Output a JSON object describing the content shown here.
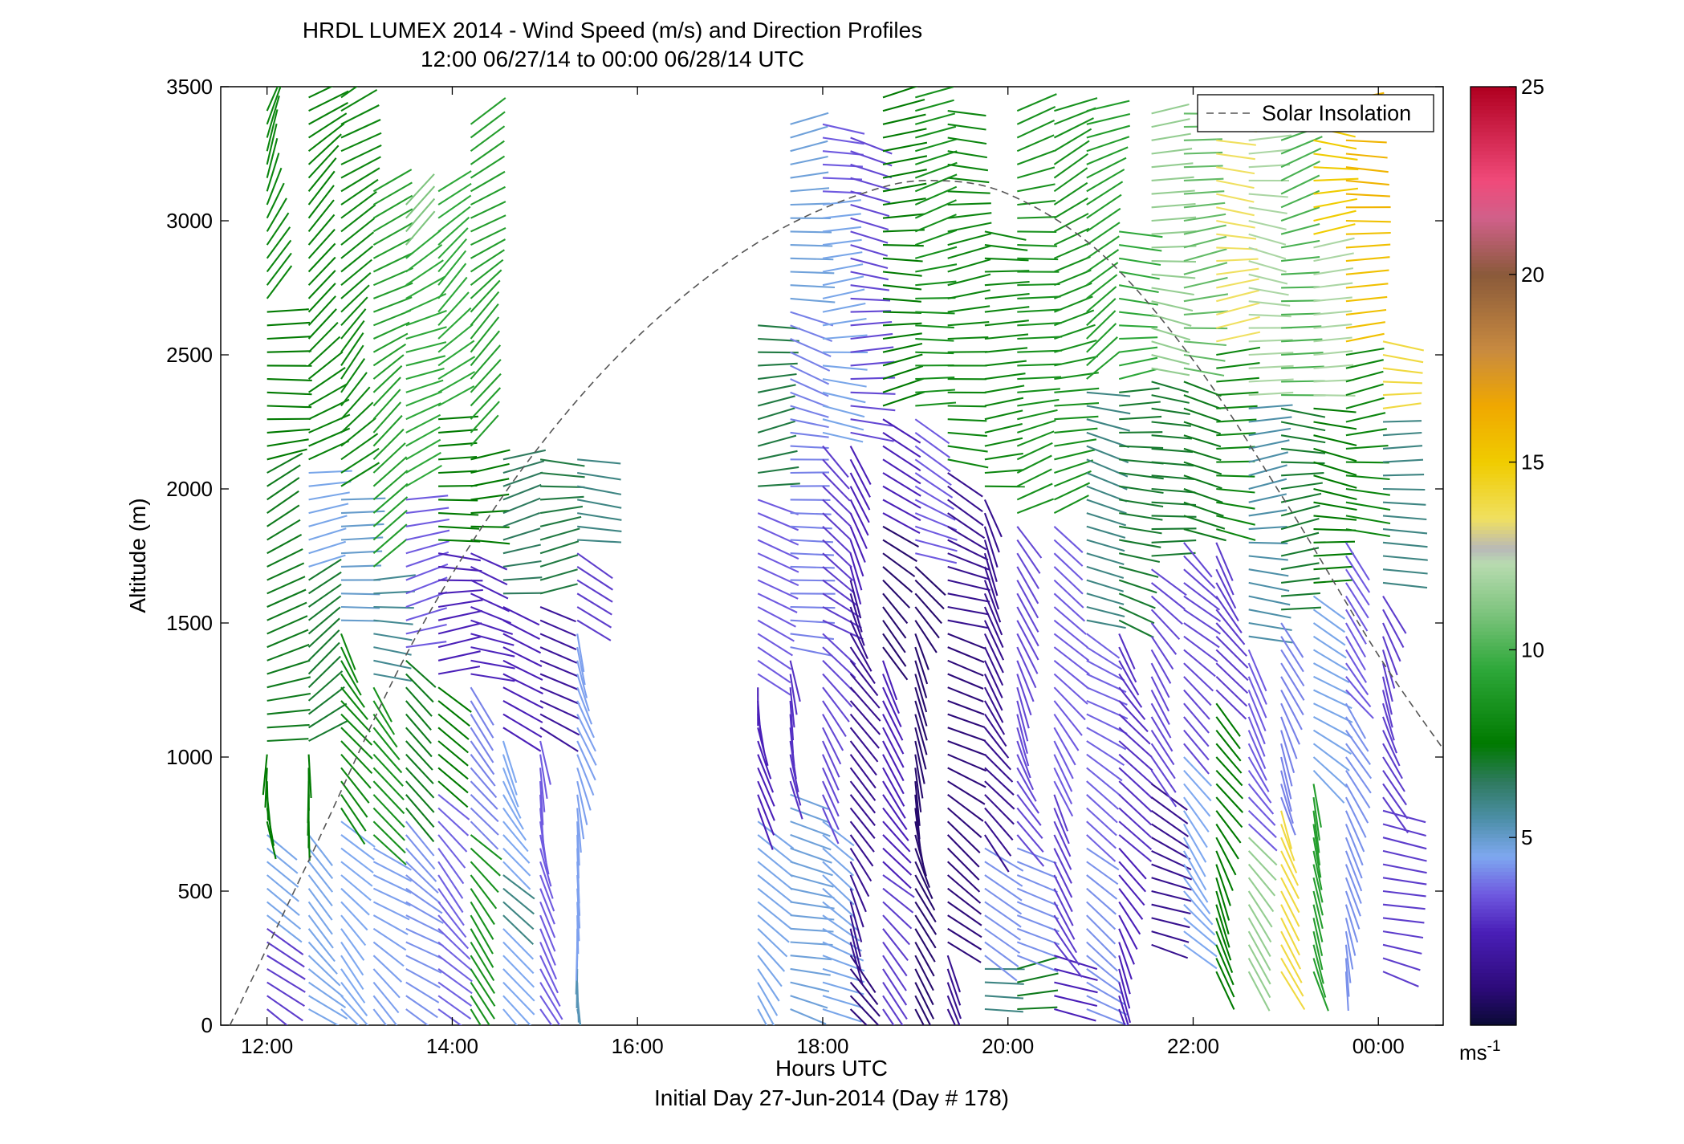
{
  "chart_data": {
    "type": "wind-barb-profile",
    "title": "HRDL LUMEX 2014 - Wind Speed (m/s) and Direction Profiles",
    "subtitle": "12:00 06/27/14 to 00:00 06/28/14  UTC",
    "xlabel": "Hours UTC",
    "xlabel2": "Initial Day 27-Jun-2014 (Day # 178)",
    "ylabel": "Altitude (m)",
    "xlim_hours": [
      11.5,
      24.7
    ],
    "ylim": [
      0,
      3500
    ],
    "x_ticks": [
      {
        "hour": 12,
        "label": "12:00"
      },
      {
        "hour": 14,
        "label": "14:00"
      },
      {
        "hour": 16,
        "label": "16:00"
      },
      {
        "hour": 18,
        "label": "18:00"
      },
      {
        "hour": 20,
        "label": "20:00"
      },
      {
        "hour": 22,
        "label": "22:00"
      },
      {
        "hour": 24,
        "label": "00:00"
      }
    ],
    "y_ticks": [
      0,
      500,
      1000,
      1500,
      2000,
      2500,
      3000,
      3500
    ],
    "colorbar": {
      "range": [
        0,
        25
      ],
      "ticks": [
        5,
        10,
        15,
        20,
        25
      ],
      "unit": "ms",
      "unit_exp": "-1",
      "colormap": [
        [
          0,
          "#0a0a35"
        ],
        [
          1,
          "#2d0a7a"
        ],
        [
          2.5,
          "#4a1fb8"
        ],
        [
          3.5,
          "#6f5ae0"
        ],
        [
          4.5,
          "#7ea8f0"
        ],
        [
          5.5,
          "#4d8fa8"
        ],
        [
          6.5,
          "#2e7a5e"
        ],
        [
          7.5,
          "#007a00"
        ],
        [
          9.5,
          "#2ea83a"
        ],
        [
          11,
          "#7ec47e"
        ],
        [
          12.3,
          "#b8dbb0"
        ],
        [
          12.7,
          "#b8b8b8"
        ],
        [
          13.5,
          "#f0e060"
        ],
        [
          15,
          "#f0cc00"
        ],
        [
          16.5,
          "#f0a800"
        ],
        [
          18,
          "#c88a40"
        ],
        [
          20,
          "#8a5a3a"
        ],
        [
          21.5,
          "#d0608a"
        ],
        [
          22.5,
          "#f04a7a"
        ],
        [
          25,
          "#b00020"
        ]
      ]
    },
    "legend": {
      "label": "Solar Insolation",
      "placement": "top-right",
      "style": "dashed gray"
    },
    "solar_insolation_curve": [
      [
        11.6,
        0
      ],
      [
        12.5,
        650
      ],
      [
        13.5,
        1380
      ],
      [
        14.5,
        1950
      ],
      [
        15.5,
        2390
      ],
      [
        16.5,
        2720
      ],
      [
        17.5,
        2960
      ],
      [
        18.5,
        3110
      ],
      [
        19.2,
        3150
      ],
      [
        20.0,
        3100
      ],
      [
        21.0,
        2880
      ],
      [
        22.0,
        2480
      ],
      [
        23.0,
        1950
      ],
      [
        24.0,
        1380
      ],
      [
        24.7,
        1030
      ]
    ],
    "profiles": [
      {
        "hour": 12.0,
        "zmin": 60,
        "zmax": 3420,
        "blocks": [
          [
            0,
            400,
            3.0,
            -45
          ],
          [
            400,
            750,
            4.6,
            -45
          ],
          [
            750,
            1050,
            7.5,
            -80
          ],
          [
            1050,
            2100,
            7.2,
            20
          ],
          [
            2100,
            2700,
            7.5,
            10
          ],
          [
            2700,
            3420,
            8.0,
            60
          ]
        ]
      },
      {
        "hour": 12.45,
        "zmin": 60,
        "zmax": 3480,
        "blocks": [
          [
            0,
            750,
            4.6,
            -45
          ],
          [
            750,
            1050,
            7.5,
            -80
          ],
          [
            1050,
            1700,
            7.0,
            30
          ],
          [
            1700,
            2100,
            4.6,
            15
          ],
          [
            2100,
            3480,
            7.8,
            40
          ]
        ]
      },
      {
        "hour": 12.8,
        "zmin": 60,
        "zmax": 3480,
        "blocks": [
          [
            0,
            800,
            4.5,
            -40
          ],
          [
            800,
            1500,
            8.0,
            -60
          ],
          [
            1500,
            2000,
            5.0,
            10
          ],
          [
            2000,
            3480,
            8.0,
            40
          ]
        ]
      },
      {
        "hour": 13.15,
        "zmin": 60,
        "zmax": 3150,
        "blocks": [
          [
            0,
            700,
            4.4,
            -40
          ],
          [
            700,
            1300,
            8.5,
            -50
          ],
          [
            1300,
            1700,
            5.8,
            5
          ],
          [
            1700,
            3150,
            9.0,
            35
          ]
        ]
      },
      {
        "hour": 13.5,
        "zmin": 60,
        "zmax": 3100,
        "blocks": [
          [
            0,
            800,
            4.2,
            -40
          ],
          [
            800,
            1400,
            7.2,
            -40
          ],
          [
            1400,
            2000,
            3.5,
            5
          ],
          [
            2000,
            2900,
            9.5,
            30
          ],
          [
            2900,
            3100,
            11.0,
            40
          ]
        ]
      },
      {
        "hour": 13.85,
        "zmin": 60,
        "zmax": 3150,
        "blocks": [
          [
            0,
            900,
            3.6,
            -40
          ],
          [
            900,
            1300,
            7.5,
            -45
          ],
          [
            1300,
            1800,
            2.5,
            0
          ],
          [
            1800,
            2300,
            7.5,
            10
          ],
          [
            2300,
            3150,
            9.5,
            35
          ]
        ]
      },
      {
        "hour": 14.2,
        "zmin": 60,
        "zmax": 3400,
        "blocks": [
          [
            0,
            750,
            8.5,
            -50
          ],
          [
            750,
            1300,
            4.0,
            -60
          ],
          [
            1300,
            1800,
            2.6,
            -10
          ],
          [
            1800,
            2150,
            7.5,
            5
          ],
          [
            2150,
            3400,
            9.0,
            40
          ]
        ]
      },
      {
        "hour": 14.55,
        "zmin": 60,
        "zmax": 2150,
        "blocks": [
          [
            0,
            400,
            4.5,
            -50
          ],
          [
            400,
            600,
            6.0,
            -50
          ],
          [
            600,
            1100,
            4.5,
            -60
          ],
          [
            1100,
            1600,
            2.5,
            -20
          ],
          [
            1600,
            2150,
            6.5,
            5
          ]
        ]
      },
      {
        "hour": 14.95,
        "zmin": 60,
        "zmax": 2150,
        "blocks": [
          [
            0,
            1100,
            3.5,
            -70
          ],
          [
            1100,
            1600,
            1.8,
            -30
          ],
          [
            1600,
            2150,
            6.8,
            5
          ]
        ]
      },
      {
        "hour": 15.35,
        "zmin": 60,
        "zmax": 2150,
        "blocks": [
          [
            0,
            300,
            5.3,
            -80
          ],
          [
            300,
            1500,
            4.4,
            -80
          ],
          [
            1500,
            1800,
            3.0,
            -30
          ],
          [
            1800,
            2150,
            6.0,
            5
          ]
        ]
      },
      {
        "hour": 17.3,
        "zmin": 60,
        "zmax": 2650,
        "blocks": [
          [
            0,
            800,
            4.6,
            -45
          ],
          [
            800,
            1300,
            2.5,
            -80
          ],
          [
            1300,
            2000,
            3.5,
            -20
          ],
          [
            2000,
            2650,
            6.8,
            0
          ]
        ]
      },
      {
        "hour": 17.65,
        "zmin": 60,
        "zmax": 3400,
        "blocks": [
          [
            0,
            900,
            4.8,
            -20
          ],
          [
            900,
            1400,
            2.8,
            -70
          ],
          [
            1400,
            2700,
            4.0,
            -10
          ],
          [
            2700,
            3400,
            4.8,
            0
          ]
        ]
      },
      {
        "hour": 18.0,
        "zmin": 60,
        "zmax": 3400,
        "blocks": [
          [
            0,
            800,
            4.6,
            -30
          ],
          [
            800,
            1500,
            3.2,
            -60
          ],
          [
            1500,
            2200,
            3.0,
            -40
          ],
          [
            2200,
            3100,
            4.6,
            0
          ],
          [
            3100,
            3400,
            3.5,
            -10
          ]
        ]
      },
      {
        "hour": 18.3,
        "zmin": 60,
        "zmax": 3350,
        "blocks": [
          [
            0,
            300,
            1.0,
            -45
          ],
          [
            300,
            1700,
            1.5,
            -60
          ],
          [
            1700,
            2200,
            2.5,
            -60
          ],
          [
            2200,
            3350,
            3.2,
            -10
          ]
        ]
      },
      {
        "hour": 18.65,
        "zmin": 60,
        "zmax": 3500,
        "blocks": [
          [
            0,
            600,
            3.0,
            -50
          ],
          [
            600,
            1400,
            2.5,
            -60
          ],
          [
            1400,
            1900,
            0.8,
            -40
          ],
          [
            1900,
            2300,
            2.5,
            -40
          ],
          [
            2300,
            3500,
            7.5,
            10
          ]
        ]
      },
      {
        "hour": 19.0,
        "zmin": 60,
        "zmax": 3500,
        "blocks": [
          [
            0,
            1500,
            0.8,
            -70
          ],
          [
            1500,
            1750,
            0.8,
            -60
          ],
          [
            1750,
            2300,
            3.5,
            -30
          ],
          [
            2300,
            3500,
            8.5,
            10
          ]
        ]
      },
      {
        "hour": 19.35,
        "zmin": 60,
        "zmax": 3450,
        "blocks": [
          [
            0,
            300,
            1.5,
            -70
          ],
          [
            300,
            1500,
            1.0,
            -30
          ],
          [
            1500,
            2100,
            1.5,
            -20
          ],
          [
            2100,
            3450,
            8.0,
            0
          ]
        ]
      },
      {
        "hour": 19.75,
        "zmin": 60,
        "zmax": 3000,
        "blocks": [
          [
            0,
            250,
            6.0,
            10
          ],
          [
            250,
            700,
            4.2,
            -30
          ],
          [
            700,
            2000,
            1.5,
            -60
          ],
          [
            2000,
            3000,
            8.0,
            0
          ]
        ]
      },
      {
        "hour": 20.1,
        "zmin": 60,
        "zmax": 3450,
        "blocks": [
          [
            0,
            250,
            7.2,
            10
          ],
          [
            250,
            700,
            4.2,
            -30
          ],
          [
            700,
            1900,
            3.2,
            -60
          ],
          [
            1900,
            3450,
            8.5,
            10
          ]
        ]
      },
      {
        "hour": 20.5,
        "zmin": 60,
        "zmax": 3450,
        "blocks": [
          [
            0,
            300,
            2.5,
            -30
          ],
          [
            300,
            900,
            3.0,
            -60
          ],
          [
            900,
            1900,
            3.5,
            -50
          ],
          [
            1900,
            3450,
            8.5,
            20
          ]
        ]
      },
      {
        "hour": 20.85,
        "zmin": 60,
        "zmax": 3450,
        "blocks": [
          [
            0,
            700,
            4.2,
            -30
          ],
          [
            700,
            1500,
            3.6,
            -40
          ],
          [
            1500,
            2400,
            6.0,
            -10
          ],
          [
            2400,
            3450,
            9.0,
            30
          ]
        ]
      },
      {
        "hour": 21.2,
        "zmin": 60,
        "zmax": 3000,
        "blocks": [
          [
            0,
            700,
            2.5,
            -60
          ],
          [
            700,
            1500,
            2.8,
            -50
          ],
          [
            1500,
            2400,
            7.0,
            -10
          ],
          [
            2400,
            3000,
            9.5,
            0
          ]
        ]
      },
      {
        "hour": 21.55,
        "zmin": 300,
        "zmax": 3400,
        "blocks": [
          [
            300,
            900,
            1.5,
            -30
          ],
          [
            900,
            1700,
            3.2,
            -50
          ],
          [
            1700,
            2400,
            7.0,
            -10
          ],
          [
            2400,
            3400,
            11.5,
            0
          ]
        ]
      },
      {
        "hour": 21.9,
        "zmin": 300,
        "zmax": 3400,
        "blocks": [
          [
            300,
            1000,
            4.5,
            -45
          ],
          [
            1000,
            1800,
            3.2,
            -50
          ],
          [
            1800,
            2400,
            7.2,
            -10
          ],
          [
            2400,
            3400,
            10.5,
            0
          ]
        ]
      },
      {
        "hour": 22.25,
        "zmin": 200,
        "zmax": 3400,
        "blocks": [
          [
            200,
            1200,
            7.5,
            -60
          ],
          [
            1200,
            1800,
            3.0,
            -50
          ],
          [
            1800,
            2500,
            8.0,
            0
          ],
          [
            2500,
            3400,
            13.5,
            0
          ]
        ]
      },
      {
        "hour": 22.6,
        "zmin": 200,
        "zmax": 3400,
        "blocks": [
          [
            200,
            700,
            11.5,
            -60
          ],
          [
            700,
            1400,
            3.5,
            -60
          ],
          [
            1400,
            2300,
            5.5,
            0
          ],
          [
            2300,
            3400,
            12.0,
            0
          ]
        ]
      },
      {
        "hour": 22.95,
        "zmin": 200,
        "zmax": 3350,
        "blocks": [
          [
            200,
            800,
            14.0,
            -70
          ],
          [
            800,
            1500,
            4.0,
            -60
          ],
          [
            1500,
            2300,
            7.0,
            0
          ],
          [
            2300,
            3350,
            10.0,
            10
          ]
        ]
      },
      {
        "hour": 23.3,
        "zmin": 200,
        "zmax": 3400,
        "blocks": [
          [
            200,
            900,
            9.0,
            -70
          ],
          [
            900,
            1600,
            4.6,
            -40
          ],
          [
            1600,
            2300,
            7.5,
            0
          ],
          [
            2300,
            2900,
            12.0,
            0
          ],
          [
            2900,
            3400,
            15.0,
            0
          ]
        ]
      },
      {
        "hour": 23.65,
        "zmin": 200,
        "zmax": 3450,
        "blocks": [
          [
            200,
            1200,
            4.2,
            -70
          ],
          [
            1200,
            1800,
            3.5,
            -50
          ],
          [
            1800,
            2500,
            8.0,
            0
          ],
          [
            2500,
            3000,
            15.5,
            5
          ],
          [
            3000,
            3450,
            16.0,
            10
          ]
        ]
      },
      {
        "hour": 24.05,
        "zmin": 200,
        "zmax": 2550,
        "blocks": [
          [
            200,
            800,
            3.0,
            -20
          ],
          [
            800,
            1600,
            3.0,
            -60
          ],
          [
            1600,
            2250,
            6.0,
            -10
          ],
          [
            2250,
            2550,
            14.0,
            0
          ]
        ]
      }
    ]
  }
}
